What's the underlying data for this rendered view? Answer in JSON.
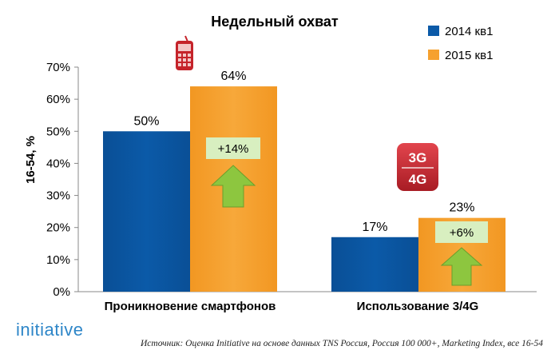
{
  "chart_data": {
    "type": "bar",
    "title": "Недельный охват",
    "ylabel": "16-54, %",
    "ylim": [
      0,
      70
    ],
    "yticks": [
      "0%",
      "10%",
      "20%",
      "30%",
      "40%",
      "50%",
      "60%",
      "70%"
    ],
    "grid": false,
    "legend_position": "top-right",
    "categories": [
      "Проникновение смартфонов",
      "Использование 3/4G"
    ],
    "series": [
      {
        "name": "2014 кв1",
        "values": [
          50,
          17
        ],
        "labels": [
          "50%",
          "17%"
        ],
        "color": "#0b5aa8"
      },
      {
        "name": "2015 кв1",
        "values": [
          64,
          23
        ],
        "labels": [
          "64%",
          "23%"
        ],
        "color": "#f6a12f"
      }
    ],
    "annotations": [
      {
        "text": "+14%",
        "category": 0,
        "icon": "up-arrow-icon"
      },
      {
        "text": "+6%",
        "category": 1,
        "icon": "up-arrow-icon"
      }
    ],
    "category_icons": [
      "mobile-phone-icon",
      "3g-4g-icon"
    ]
  },
  "badge_3g": "3G",
  "badge_4g": "4G",
  "logo": "initiative",
  "source": "Источник: Оценка Initiative на основе данных TNS Россия, Россия 100 000+, Marketing Index, все 16-54",
  "colors": {
    "arrow_fill": "#8dc63f",
    "arrow_stroke": "#6a9e2c",
    "delta_box": "#d8efc0",
    "badge_red": "#c0242d",
    "phone_red": "#c5232a",
    "logo_blue": "#2e86c8"
  }
}
